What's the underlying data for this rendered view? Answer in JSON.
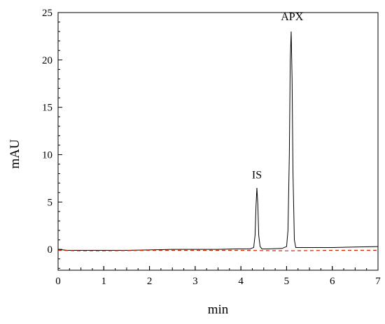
{
  "chart_data": {
    "type": "line",
    "title": "",
    "xlabel": "min",
    "ylabel": "mAU",
    "xlim": [
      0,
      7
    ],
    "ylim": [
      -2.2,
      25
    ],
    "x_ticks": [
      0,
      1,
      2,
      3,
      4,
      5,
      6,
      7
    ],
    "y_ticks": [
      0,
      5,
      10,
      15,
      20,
      25
    ],
    "grid": false,
    "legend": "none",
    "annotations": [
      {
        "text": "IS",
        "x": 4.35,
        "y": 7.5
      },
      {
        "text": "APX",
        "x": 5.12,
        "y": 24.2
      }
    ],
    "series": [
      {
        "color": "#000000",
        "style": "solid",
        "x": [
          0,
          0.2,
          0.5,
          1.0,
          1.5,
          2.0,
          2.5,
          3.0,
          3.5,
          3.9,
          4.2,
          4.28,
          4.31,
          4.33,
          4.35,
          4.37,
          4.39,
          4.42,
          4.46,
          4.6,
          4.9,
          5.0,
          5.03,
          5.06,
          5.08,
          5.1,
          5.12,
          5.14,
          5.17,
          5.2,
          5.5,
          6.0,
          6.5,
          7.0
        ],
        "y": [
          0.0,
          -0.1,
          -0.1,
          -0.1,
          -0.1,
          -0.05,
          0.0,
          0.0,
          0.0,
          0.05,
          0.05,
          0.2,
          1.5,
          4.5,
          6.5,
          4.8,
          1.5,
          0.3,
          0.05,
          0.05,
          0.1,
          0.3,
          2.0,
          10.0,
          20.0,
          23.0,
          18.0,
          8.0,
          1.0,
          0.2,
          0.2,
          0.2,
          0.25,
          0.3
        ]
      },
      {
        "color": "#cc2200",
        "style": "dashed",
        "x": [
          0,
          0.5,
          1.0,
          2.0,
          3.0,
          4.0,
          5.0,
          6.0,
          7.0
        ],
        "y": [
          -0.1,
          -0.15,
          -0.15,
          -0.1,
          -0.1,
          -0.1,
          -0.15,
          -0.1,
          -0.1
        ]
      }
    ]
  }
}
